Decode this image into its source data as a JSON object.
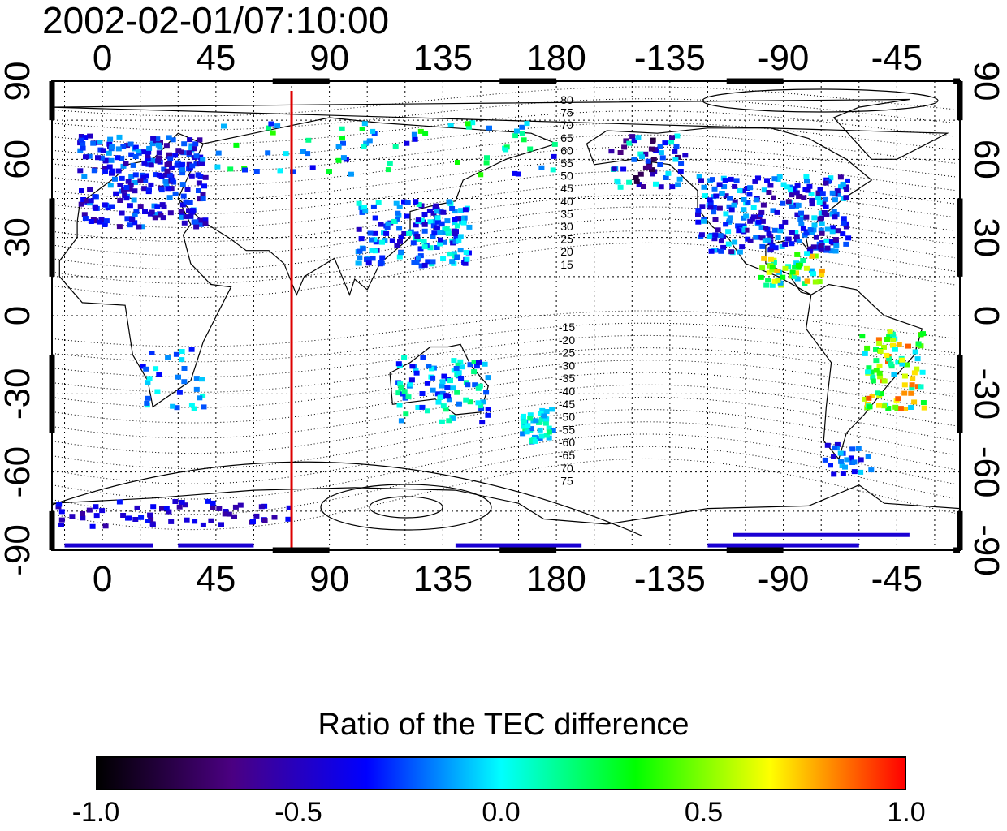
{
  "title": "2002-02-01/07:10:00",
  "map": {
    "top_lon_ticks": [
      "0",
      "45",
      "90",
      "135",
      "180",
      "-135",
      "-90",
      "-45"
    ],
    "bottom_lon_ticks": [
      "0",
      "45",
      "90",
      "135",
      "180",
      "-135",
      "-90",
      "-45"
    ],
    "left_lat_ticks": [
      "90",
      "60",
      "30",
      "0",
      "-30",
      "-60",
      "-90"
    ],
    "right_lat_ticks": [
      "90",
      "60",
      "30",
      "0",
      "-30",
      "-60",
      "-90"
    ],
    "meridian_marker_lon": 75,
    "meridian_marker_color": "#dd0000",
    "north_contour_labels": [
      "80",
      "75",
      "70",
      "65",
      "60",
      "55",
      "50",
      "45",
      "40",
      "35",
      "30",
      "25",
      "20",
      "15"
    ],
    "south_contour_labels": [
      "-15",
      "-20",
      "-25",
      "-30",
      "-35",
      "-40",
      "-45",
      "-50",
      "-55",
      "-60",
      "-65",
      "70",
      "75"
    ]
  },
  "colorbar": {
    "title": "Ratio of the TEC difference",
    "ticks": [
      "-1.0",
      "-0.5",
      "0.0",
      "0.5",
      "1.0"
    ],
    "stops": [
      "#000000",
      "#4b0082",
      "#0000ff",
      "#00ffff",
      "#00ff00",
      "#ffff00",
      "#ff0000"
    ]
  }
}
